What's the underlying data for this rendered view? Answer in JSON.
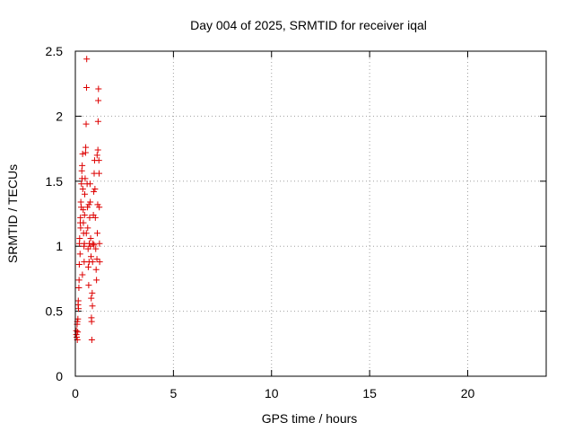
{
  "chart_data": {
    "type": "scatter",
    "title": "Day 004 of 2025, SRMTID for receiver iqal",
    "xlabel": "GPS time / hours",
    "ylabel": "SRMTID / TECUs",
    "xlim": [
      0,
      24
    ],
    "ylim": [
      0,
      2.5
    ],
    "xticks": [
      0,
      5,
      10,
      15,
      20
    ],
    "yticks": [
      0,
      0.5,
      1,
      1.5,
      2,
      2.5
    ],
    "xtick_labels": [
      "0",
      "5",
      "10",
      "15",
      "20"
    ],
    "ytick_labels": [
      "0",
      "0.5",
      "1",
      "1.5",
      "2",
      "2.5"
    ],
    "grid": true,
    "marker": "+",
    "color": "#dd0000",
    "points": [
      [
        0.05,
        0.35
      ],
      [
        0.05,
        0.32
      ],
      [
        0.07,
        0.3
      ],
      [
        0.09,
        0.4
      ],
      [
        0.1,
        0.28
      ],
      [
        0.12,
        0.34
      ],
      [
        0.13,
        0.44
      ],
      [
        0.14,
        0.55
      ],
      [
        0.15,
        0.58
      ],
      [
        0.16,
        0.52
      ],
      [
        0.18,
        0.68
      ],
      [
        0.19,
        0.74
      ],
      [
        0.2,
        0.86
      ],
      [
        0.21,
        1.02
      ],
      [
        0.22,
        1.06
      ],
      [
        0.24,
        0.94
      ],
      [
        0.25,
        1.18
      ],
      [
        0.26,
        1.22
      ],
      [
        0.28,
        1.34
      ],
      [
        0.3,
        1.3
      ],
      [
        0.31,
        1.48
      ],
      [
        0.33,
        1.58
      ],
      [
        0.34,
        1.52
      ],
      [
        0.35,
        1.62
      ],
      [
        0.37,
        1.71
      ],
      [
        0.38,
        1.44
      ],
      [
        0.4,
        1.28
      ],
      [
        0.41,
        1.18
      ],
      [
        0.42,
        1.1
      ],
      [
        0.44,
        1.0
      ],
      [
        0.45,
        0.88
      ],
      [
        0.47,
        1.24
      ],
      [
        0.48,
        1.4
      ],
      [
        0.5,
        1.52
      ],
      [
        0.52,
        1.72
      ],
      [
        0.53,
        1.76
      ],
      [
        0.55,
        1.94
      ],
      [
        0.57,
        2.22
      ],
      [
        0.58,
        2.44
      ],
      [
        0.6,
        1.48
      ],
      [
        0.62,
        1.3
      ],
      [
        0.63,
        1.14
      ],
      [
        0.65,
        0.98
      ],
      [
        0.66,
        0.84
      ],
      [
        0.68,
        0.7
      ],
      [
        0.7,
        0.88
      ],
      [
        0.71,
        1.02
      ],
      [
        0.73,
        1.22
      ],
      [
        0.75,
        1.48
      ],
      [
        0.76,
        1.34
      ],
      [
        0.78,
        1.06
      ],
      [
        0.8,
        0.92
      ],
      [
        0.81,
        0.6
      ],
      [
        0.82,
        0.45
      ],
      [
        0.83,
        0.42
      ],
      [
        0.84,
        0.28
      ],
      [
        0.86,
        0.64
      ],
      [
        0.88,
        0.88
      ],
      [
        0.9,
        1.02
      ],
      [
        0.92,
        1.24
      ],
      [
        0.94,
        1.42
      ],
      [
        0.96,
        1.56
      ],
      [
        0.98,
        1.66
      ],
      [
        1.0,
        1.44
      ],
      [
        1.02,
        1.22
      ],
      [
        1.04,
        0.98
      ],
      [
        1.06,
        0.82
      ],
      [
        1.08,
        0.74
      ],
      [
        1.1,
        0.9
      ],
      [
        1.12,
        1.1
      ],
      [
        1.14,
        1.32
      ],
      [
        1.15,
        1.74
      ],
      [
        1.16,
        1.96
      ],
      [
        1.17,
        2.12
      ],
      [
        1.18,
        2.21
      ],
      [
        1.2,
        1.66
      ],
      [
        1.21,
        1.56
      ],
      [
        1.22,
        1.3
      ],
      [
        1.23,
        1.02
      ],
      [
        1.24,
        0.88
      ],
      [
        0.1,
        0.42
      ],
      [
        0.27,
        1.14
      ],
      [
        0.36,
        0.78
      ],
      [
        0.46,
        1.02
      ],
      [
        0.56,
        1.1
      ],
      [
        0.69,
        1.32
      ],
      [
        0.77,
        1.0
      ],
      [
        0.87,
        0.54
      ],
      [
        0.95,
        1.01
      ],
      [
        1.11,
        1.7
      ]
    ]
  }
}
